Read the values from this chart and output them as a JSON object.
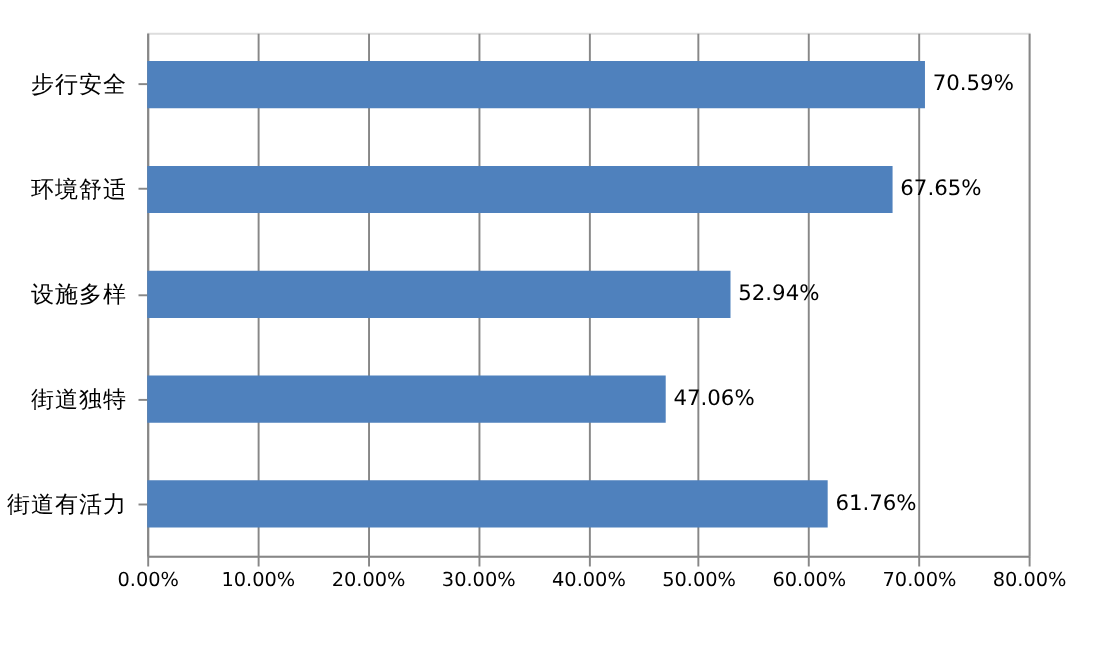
{
  "chart_data": {
    "type": "bar",
    "orientation": "horizontal",
    "categories": [
      "步行安全",
      "环境舒适",
      "设施多样",
      "街道独特",
      "街道有活力"
    ],
    "values": [
      70.59,
      67.65,
      52.94,
      47.06,
      61.76
    ],
    "color": "#4f81bd",
    "value_labels": [
      "70.59%",
      "67.65%",
      "52.94%",
      "47.06%",
      "61.76%"
    ],
    "xlim": [
      0,
      80
    ],
    "xticks": [
      {
        "value": 0,
        "label": "0.00%"
      },
      {
        "value": 10,
        "label": "10.00%"
      },
      {
        "value": 20,
        "label": "20.00%"
      },
      {
        "value": 30,
        "label": "30.00%"
      },
      {
        "value": 40,
        "label": "40.00%"
      },
      {
        "value": 50,
        "label": "50.00%"
      },
      {
        "value": 60,
        "label": "60.00%"
      },
      {
        "value": 70,
        "label": "70.00%"
      },
      {
        "value": 80,
        "label": "80.00%"
      }
    ],
    "grid": "x"
  }
}
